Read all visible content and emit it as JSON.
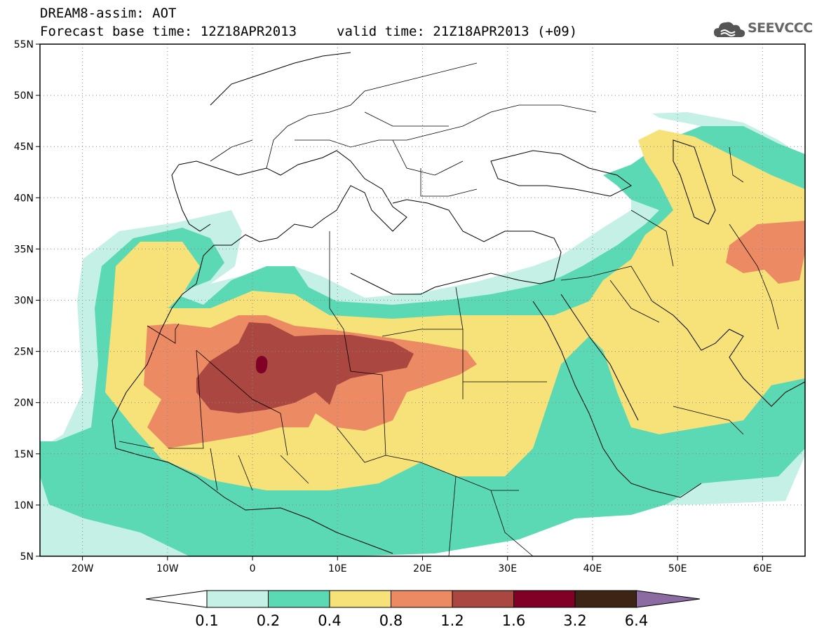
{
  "title_line1": "DREAM8-assim: AOT",
  "title_line2": "Forecast base time: 12Z18APR2013",
  "valid_time": "valid time: 21Z18APR2013 (+09)",
  "logo_text": "SEEVCCC",
  "colors": {
    "c1": "#c4f0e6",
    "c2": "#5ad9b4",
    "c3": "#f7e27a",
    "c4": "#ec8a64",
    "c5": "#a94740",
    "c6": "#800026",
    "c7": "#3d2414",
    "c8": "#8c6ba3"
  },
  "map": {
    "lat_labels": [
      "55N",
      "50N",
      "45N",
      "40N",
      "35N",
      "30N",
      "25N",
      "20N",
      "15N",
      "10N",
      "5N"
    ],
    "lon_labels": [
      "20W",
      "10W",
      "0",
      "10E",
      "20E",
      "30E",
      "40E",
      "50E",
      "60E"
    ]
  },
  "colorbar": {
    "labels": [
      "0.1",
      "0.2",
      "0.4",
      "0.8",
      "1.2",
      "1.6",
      "3.2",
      "6.4"
    ]
  }
}
